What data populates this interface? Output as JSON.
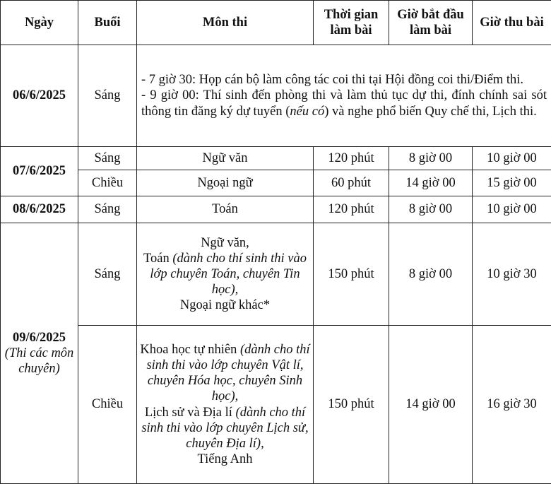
{
  "table": {
    "header": [
      "Ngày",
      "Buổi",
      "Môn thi",
      "Thời gian làm bài",
      "Giờ bắt đầu làm bài",
      "Giờ thu bài"
    ],
    "days": [
      {
        "date": "06/6/2025",
        "sessions": [
          {
            "session": "Sáng",
            "notice": [
              [
                {
                  "text": "- 7 giờ 30: Họp cán bộ làm công tác coi thi tại Hội đồng coi thi/Điểm thi."
                }
              ],
              [
                {
                  "text": "- 9 giờ 00: Thí sinh đến phòng thi và làm thủ tục dự thi, đính chính sai sót thông tin đăng ký dự tuyển ("
                },
                {
                  "text": "nếu có",
                  "italic": true
                },
                {
                  "text": ") và nghe phổ biến Quy chế thi, Lịch thi."
                }
              ]
            ]
          }
        ]
      },
      {
        "date": "07/6/2025",
        "sessions": [
          {
            "session": "Sáng",
            "subject": [
              [
                {
                  "text": "Ngữ văn"
                }
              ]
            ],
            "duration": "120 phút",
            "start": "8 giờ 00",
            "end": "10 giờ 00"
          },
          {
            "session": "Chiều",
            "subject": [
              [
                {
                  "text": "Ngoại ngữ"
                }
              ]
            ],
            "duration": "60 phút",
            "start": "14 giờ 00",
            "end": "15 giờ 00"
          }
        ]
      },
      {
        "date": "08/6/2025",
        "sessions": [
          {
            "session": "Sáng",
            "subject": [
              [
                {
                  "text": "Toán"
                }
              ]
            ],
            "duration": "120 phút",
            "start": "8 giờ 00",
            "end": "10 giờ 00"
          }
        ]
      },
      {
        "date": "09/6/2025",
        "date_note": "(Thi các môn chuyên)",
        "sessions": [
          {
            "session": "Sáng",
            "subject": [
              [
                {
                  "text": "Ngữ văn,"
                }
              ],
              [
                {
                  "text": "Toán "
                },
                {
                  "text": "(dành cho thí sinh thi vào lớp chuyên Toán, chuyên Tin học),",
                  "italic": true
                }
              ],
              [
                {
                  "text": "Ngoại ngữ khác*"
                }
              ]
            ],
            "duration": "150 phút",
            "start": "8 giờ 00",
            "end": "10 giờ 30"
          },
          {
            "session": "Chiều",
            "subject": [
              [
                {
                  "text": "Khoa học tự nhiên "
                },
                {
                  "text": "(dành cho thí sinh thi vào lớp chuyên Vật lí, chuyên Hóa học, chuyên Sinh học),",
                  "italic": true
                }
              ],
              [
                {
                  "text": "Lịch sử và Địa lí "
                },
                {
                  "text": "(dành cho thí sinh thi vào lớp chuyên Lịch sử, chuyên Địa lí),",
                  "italic": true
                }
              ],
              [
                {
                  "text": "Tiếng Anh"
                }
              ]
            ],
            "duration": "150 phút",
            "start": "14 giờ 00",
            "end": "16 giờ 30"
          }
        ]
      }
    ]
  }
}
